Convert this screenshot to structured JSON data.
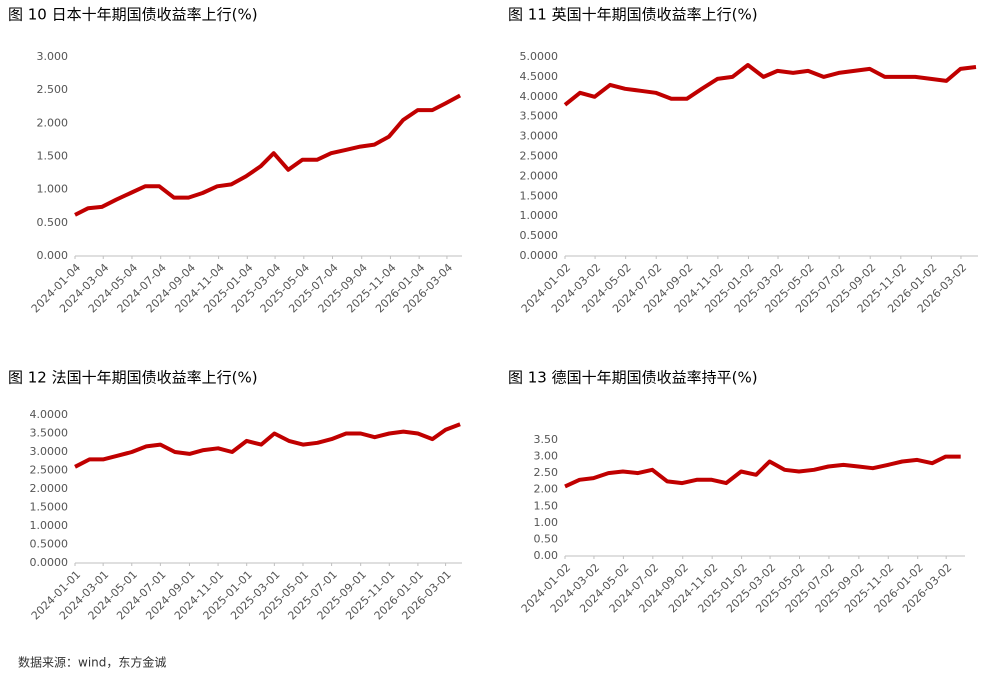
{
  "chart_data": [
    {
      "type": "line",
      "title": "图 10 日本十年期国债收益率上行(%)",
      "color": "#c00000",
      "x": [
        "2024-01-04",
        "2024-02-01",
        "2024-03-01",
        "2024-04-01",
        "2024-05-01",
        "2024-06-01",
        "2024-07-01",
        "2024-08-01",
        "2024-09-01",
        "2024-10-01",
        "2024-11-01",
        "2024-12-01",
        "2025-01-01",
        "2025-02-01",
        "2025-03-01",
        "2025-04-01",
        "2025-05-01",
        "2025-06-01",
        "2025-07-01",
        "2025-08-01",
        "2025-09-01",
        "2025-10-01",
        "2025-11-01",
        "2025-12-01",
        "2026-01-01",
        "2026-02-01",
        "2026-03-01",
        "2026-04-01"
      ],
      "values": [
        0.62,
        0.72,
        0.74,
        0.85,
        0.95,
        1.05,
        1.05,
        0.88,
        0.88,
        0.95,
        1.05,
        1.08,
        1.2,
        1.35,
        1.55,
        1.3,
        1.45,
        1.45,
        1.55,
        1.6,
        1.65,
        1.68,
        1.8,
        2.05,
        2.2,
        2.2,
        2.3,
        2.42
      ],
      "xlim": [
        "2024-01-04",
        "2026-04-05"
      ],
      "xticks": [
        "2024-01-04",
        "2024-03-04",
        "2024-05-04",
        "2024-07-04",
        "2024-09-04",
        "2024-11-04",
        "2025-01-04",
        "2025-03-04",
        "2025-05-04",
        "2025-07-04",
        "2025-09-04",
        "2025-11-04",
        "2026-01-04",
        "2026-03-04"
      ],
      "ylim": [
        0,
        3
      ],
      "yticks": [
        {
          "value": 0,
          "label": "0.000"
        },
        {
          "value": 0.5,
          "label": "0.500"
        },
        {
          "value": 1,
          "label": "1.000"
        },
        {
          "value": 1.5,
          "label": "1.500"
        },
        {
          "value": 2,
          "label": "2.000"
        },
        {
          "value": 2.5,
          "label": "2.500"
        },
        {
          "value": 3,
          "label": "3.000"
        }
      ]
    },
    {
      "type": "line",
      "title": "图 11 英国十年期国债收益率上行(%)",
      "color": "#c00000",
      "x": [
        "2024-01-02",
        "2024-02-01",
        "2024-03-01",
        "2024-04-01",
        "2024-05-01",
        "2024-06-01",
        "2024-07-01",
        "2024-08-01",
        "2024-09-01",
        "2024-10-01",
        "2024-11-01",
        "2024-12-01",
        "2025-01-01",
        "2025-02-01",
        "2025-03-01",
        "2025-04-01",
        "2025-05-01",
        "2025-06-01",
        "2025-07-01",
        "2025-08-01",
        "2025-09-01",
        "2025-10-01",
        "2025-11-01",
        "2025-12-01",
        "2026-01-01",
        "2026-02-01",
        "2026-03-01",
        "2026-04-01"
      ],
      "values": [
        3.8,
        4.1,
        4.0,
        4.3,
        4.2,
        4.15,
        4.1,
        3.95,
        3.95,
        4.2,
        4.45,
        4.5,
        4.8,
        4.5,
        4.65,
        4.6,
        4.65,
        4.5,
        4.6,
        4.65,
        4.7,
        4.5,
        4.5,
        4.5,
        4.45,
        4.4,
        4.7,
        4.75
      ],
      "xlim": [
        "2024-01-02",
        "2026-04-05"
      ],
      "xticks": [
        "2024-01-02",
        "2024-03-02",
        "2024-05-02",
        "2024-07-02",
        "2024-09-02",
        "2024-11-02",
        "2025-01-02",
        "2025-03-02",
        "2025-05-02",
        "2025-07-02",
        "2025-09-02",
        "2025-11-02",
        "2026-01-02",
        "2026-03-02"
      ],
      "ylim": [
        0,
        5
      ],
      "yticks": [
        {
          "value": 0,
          "label": "0.0000"
        },
        {
          "value": 0.5,
          "label": "0.5000"
        },
        {
          "value": 1,
          "label": "1.0000"
        },
        {
          "value": 1.5,
          "label": "1.5000"
        },
        {
          "value": 2,
          "label": "2.0000"
        },
        {
          "value": 2.5,
          "label": "2.5000"
        },
        {
          "value": 3,
          "label": "3.0000"
        },
        {
          "value": 3.5,
          "label": "3.5000"
        },
        {
          "value": 4,
          "label": "4.0000"
        },
        {
          "value": 4.5,
          "label": "4.5000"
        },
        {
          "value": 5,
          "label": "5.0000"
        }
      ]
    },
    {
      "type": "line",
      "title": "图 12 法国十年期国债收益率上行(%)",
      "color": "#c00000",
      "x": [
        "2024-01-01",
        "2024-02-01",
        "2024-03-01",
        "2024-04-01",
        "2024-05-01",
        "2024-06-01",
        "2024-07-01",
        "2024-08-01",
        "2024-09-01",
        "2024-10-01",
        "2024-11-01",
        "2024-12-01",
        "2025-01-01",
        "2025-02-01",
        "2025-03-01",
        "2025-04-01",
        "2025-05-01",
        "2025-06-01",
        "2025-07-01",
        "2025-08-01",
        "2025-09-01",
        "2025-10-01",
        "2025-11-01",
        "2025-12-01",
        "2026-01-01",
        "2026-02-01",
        "2026-03-01",
        "2026-04-01"
      ],
      "values": [
        2.6,
        2.8,
        2.8,
        2.9,
        3.0,
        3.15,
        3.2,
        3.0,
        2.95,
        3.05,
        3.1,
        3.0,
        3.3,
        3.2,
        3.5,
        3.3,
        3.2,
        3.25,
        3.35,
        3.5,
        3.5,
        3.4,
        3.5,
        3.55,
        3.5,
        3.35,
        3.6,
        3.75
      ],
      "xlim": [
        "2024-01-01",
        "2026-04-05"
      ],
      "xticks": [
        "2024-01-01",
        "2024-03-01",
        "2024-05-01",
        "2024-07-01",
        "2024-09-01",
        "2024-11-01",
        "2025-01-01",
        "2025-03-01",
        "2025-05-01",
        "2025-07-01",
        "2025-09-01",
        "2025-11-01",
        "2026-01-01",
        "2026-03-01"
      ],
      "ylim": [
        0,
        4
      ],
      "yticks": [
        {
          "value": 0,
          "label": "0.0000"
        },
        {
          "value": 0.5,
          "label": "0.5000"
        },
        {
          "value": 1,
          "label": "1.0000"
        },
        {
          "value": 1.5,
          "label": "1.5000"
        },
        {
          "value": 2,
          "label": "2.0000"
        },
        {
          "value": 2.5,
          "label": "2.5000"
        },
        {
          "value": 3,
          "label": "3.0000"
        },
        {
          "value": 3.5,
          "label": "3.5000"
        },
        {
          "value": 4,
          "label": "4.0000"
        }
      ]
    },
    {
      "type": "line",
      "title": "图 13 德国十年期国债收益率持平(%)",
      "color": "#c00000",
      "x": [
        "2024-01-02",
        "2024-02-01",
        "2024-03-01",
        "2024-04-01",
        "2024-05-01",
        "2024-06-01",
        "2024-07-01",
        "2024-08-01",
        "2024-09-01",
        "2024-10-01",
        "2024-11-01",
        "2024-12-01",
        "2025-01-01",
        "2025-02-01",
        "2025-03-01",
        "2025-04-01",
        "2025-05-01",
        "2025-06-01",
        "2025-07-01",
        "2025-08-01",
        "2025-09-01",
        "2025-10-01",
        "2025-11-01",
        "2025-12-01",
        "2026-01-01",
        "2026-02-01",
        "2026-03-01",
        "2026-04-01"
      ],
      "values": [
        2.1,
        2.3,
        2.35,
        2.5,
        2.55,
        2.5,
        2.6,
        2.25,
        2.2,
        2.3,
        2.3,
        2.2,
        2.55,
        2.45,
        2.85,
        2.6,
        2.55,
        2.6,
        2.7,
        2.75,
        2.7,
        2.65,
        2.75,
        2.85,
        2.9,
        2.8,
        3.0,
        3.0
      ],
      "xlim": [
        "2024-01-02",
        "2026-04-10"
      ],
      "xticks": [
        "2024-01-02",
        "2024-03-02",
        "2024-05-02",
        "2024-07-02",
        "2024-09-02",
        "2024-11-02",
        "2025-01-02",
        "2025-03-02",
        "2025-05-02",
        "2025-07-02",
        "2025-09-02",
        "2025-11-02",
        "2026-01-02",
        "2026-03-02"
      ],
      "ylim": [
        0,
        3.5
      ],
      "yticks": [
        {
          "value": 0,
          "label": "0.00"
        },
        {
          "value": 0.5,
          "label": "0.50"
        },
        {
          "value": 1,
          "label": "1.00"
        },
        {
          "value": 1.5,
          "label": "1.50"
        },
        {
          "value": 2,
          "label": "2.00"
        },
        {
          "value": 2.5,
          "label": "2.50"
        },
        {
          "value": 3,
          "label": "3.00"
        },
        {
          "value": 3.5,
          "label": "3.50"
        }
      ]
    }
  ],
  "source": "数据来源：wind，东方金诚"
}
